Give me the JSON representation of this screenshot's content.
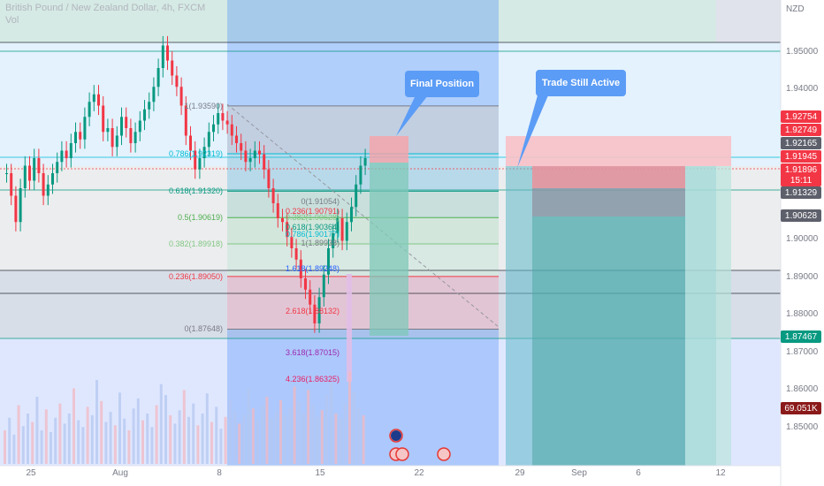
{
  "header": {
    "symbol_line": "British Pound / New Zealand Dollar, 4h, FXCM",
    "volume_label": "Vol"
  },
  "axis": {
    "currency": "NZD",
    "y_ticks": [
      "1.95000",
      "1.94000",
      "1.90000",
      "1.89000",
      "1.88000",
      "1.87000",
      "1.86000",
      "1.85000"
    ],
    "x_ticks": [
      "25",
      "Aug",
      "8",
      "15",
      "22",
      "29",
      "Sep",
      "6",
      "12"
    ]
  },
  "price_badges": [
    {
      "label": "1.92754",
      "color": "#f23645"
    },
    {
      "label": "1.92749",
      "color": "#f23645"
    },
    {
      "label": "1.92165",
      "color": "#5d606b"
    },
    {
      "label": "1.91945",
      "color": "#f23645"
    },
    {
      "label": "1.91896",
      "color": "#f23645"
    },
    {
      "label": "15:11",
      "color": "#f23645"
    },
    {
      "label": "1.91329",
      "color": "#5d606b"
    },
    {
      "label": "1.90628",
      "color": "#5d606b"
    },
    {
      "label": "1.87467",
      "color": "#089981"
    },
    {
      "label": "69.051K",
      "color": "#8b1a1a"
    }
  ],
  "callouts": {
    "final_position": "Final Position",
    "trade_active": "Trade Still Active"
  },
  "fib_big": [
    {
      "label": "1(1.93590)",
      "price": 1.9359,
      "color": "#787b86"
    },
    {
      "label": "0.786(1.92319)",
      "price": 1.92319,
      "color": "#00bcd4"
    },
    {
      "label": "0.618(1.91320)",
      "price": 1.9132,
      "color": "#089981"
    },
    {
      "label": "0.5(1.90619)",
      "price": 1.90619,
      "color": "#4caf50"
    },
    {
      "label": "0.382(1.89918)",
      "price": 1.89918,
      "color": "#81c784"
    },
    {
      "label": "0.236(1.89050)",
      "price": 1.8905,
      "color": "#f23645"
    },
    {
      "label": "0(1.87648)",
      "price": 1.87648,
      "color": "#787b86"
    }
  ],
  "fib_small": [
    {
      "label": "0(1.91054)",
      "price": 1.91054,
      "color": "#787b86"
    },
    {
      "label": "0.236(1.90791)",
      "price": 1.90791,
      "color": "#f23645"
    },
    {
      "label": "0.382(1.90628)",
      "price": 1.90628,
      "color": "#81c784"
    },
    {
      "label": "0.618(1.90364)",
      "price": 1.90364,
      "color": "#089981"
    },
    {
      "label": "0.786(1.90177)",
      "price": 1.90177,
      "color": "#00bcd4"
    },
    {
      "label": "1(1.89938)",
      "price": 1.89938,
      "color": "#787b86"
    },
    {
      "label": "1.618(1.89248)",
      "price": 1.89248,
      "color": "#2962ff"
    },
    {
      "label": "2.618(1.88132)",
      "price": 1.88132,
      "color": "#f23645"
    },
    {
      "label": "3.618(1.87015)",
      "price": 1.87015,
      "color": "#9c27b0"
    },
    {
      "label": "4.236(1.86325)",
      "price": 1.86325,
      "color": "#e91e63"
    }
  ],
  "chart_data": {
    "type": "candlestick",
    "y_axis_unit": "NZD",
    "ylim": [
      1.845,
      1.962
    ],
    "close_series": [
      1.918,
      1.912,
      1.905,
      1.914,
      1.92,
      1.916,
      1.922,
      1.918,
      1.912,
      1.915,
      1.918,
      1.921,
      1.924,
      1.922,
      1.926,
      1.929,
      1.927,
      1.933,
      1.937,
      1.939,
      1.936,
      1.929,
      1.93,
      1.925,
      1.928,
      1.933,
      1.93,
      1.926,
      1.929,
      1.932,
      1.935,
      1.937,
      1.941,
      1.946,
      1.952,
      1.948,
      1.944,
      1.941,
      1.936,
      1.928,
      1.924,
      1.919,
      1.922,
      1.925,
      1.929,
      1.931,
      1.934,
      1.932,
      1.931,
      1.928,
      1.926,
      1.924,
      1.921,
      1.922,
      1.924,
      1.923,
      1.919,
      1.914,
      1.91,
      1.906,
      1.905,
      1.901,
      1.898,
      1.895,
      1.89,
      1.887,
      1.883,
      1.878,
      1.885,
      1.891,
      1.898,
      1.902,
      1.906,
      1.9,
      1.905,
      1.909,
      1.915,
      1.92,
      1.922
    ],
    "volume_series": [
      40,
      55,
      35,
      70,
      45,
      60,
      50,
      80,
      40,
      65,
      38,
      55,
      72,
      48,
      60,
      90,
      52,
      44,
      68,
      58,
      100,
      75,
      50,
      62,
      46,
      85,
      54,
      40,
      66,
      78,
      52,
      60,
      44,
      70,
      95,
      82,
      58,
      48,
      64,
      88,
      56,
      72,
      46,
      60,
      84,
      50,
      68,
      42,
      56,
      76,
      62,
      48,
      58,
      90,
      66,
      52,
      70,
      80,
      54,
      62,
      76,
      58,
      66,
      92,
      74,
      60,
      88,
      70,
      56,
      64,
      82,
      96,
      60,
      54,
      72,
      110,
      86,
      66,
      58
    ]
  }
}
